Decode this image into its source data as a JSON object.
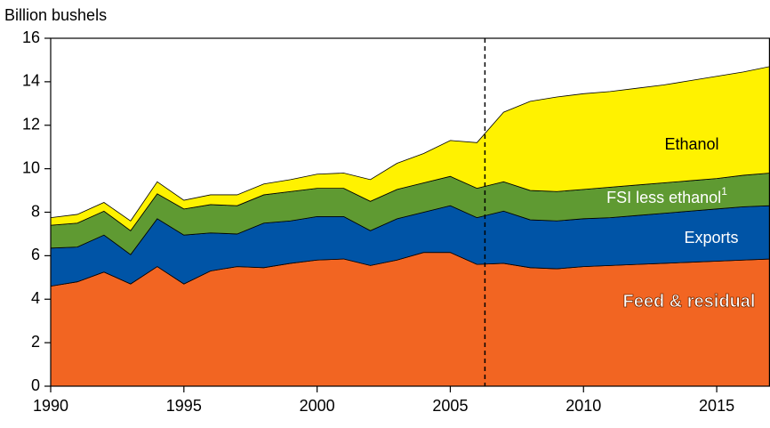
{
  "chart_data": {
    "type": "stacked-area",
    "y_label": "Billion bushels",
    "x": [
      1990,
      1991,
      1992,
      1993,
      1994,
      1995,
      1996,
      1997,
      1998,
      1999,
      2000,
      2001,
      2002,
      2003,
      2004,
      2005,
      2006,
      2007,
      2008,
      2009,
      2010,
      2011,
      2012,
      2013,
      2014,
      2015,
      2016,
      2017
    ],
    "series": [
      {
        "name": "Feed & residual",
        "color": "#f26522",
        "label_color": "#ffffff",
        "values": [
          4.6,
          4.8,
          5.25,
          4.7,
          5.5,
          4.7,
          5.3,
          5.5,
          5.45,
          5.65,
          5.8,
          5.85,
          5.55,
          5.8,
          6.15,
          6.15,
          5.6,
          5.65,
          5.45,
          5.4,
          5.5,
          5.55,
          5.6,
          5.65,
          5.7,
          5.75,
          5.8,
          5.85
        ]
      },
      {
        "name": "Exports",
        "color": "#0054a6",
        "label_color": "#ffffff",
        "values": [
          1.75,
          1.6,
          1.7,
          1.35,
          2.2,
          2.25,
          1.75,
          1.5,
          2.05,
          1.95,
          2.0,
          1.95,
          1.6,
          1.9,
          1.85,
          2.15,
          2.15,
          2.4,
          2.2,
          2.2,
          2.2,
          2.2,
          2.25,
          2.3,
          2.35,
          2.4,
          2.45,
          2.45
        ]
      },
      {
        "name": "FSI less ethanol",
        "name_sup": "1",
        "color": "#5f9a32",
        "label_color": "#ffffff",
        "values": [
          1.05,
          1.1,
          1.1,
          1.1,
          1.15,
          1.2,
          1.3,
          1.3,
          1.3,
          1.35,
          1.3,
          1.3,
          1.35,
          1.35,
          1.35,
          1.35,
          1.35,
          1.35,
          1.35,
          1.35,
          1.35,
          1.4,
          1.4,
          1.4,
          1.4,
          1.4,
          1.45,
          1.5
        ]
      },
      {
        "name": "Ethanol",
        "color": "#fff200",
        "label_color": "#000000",
        "values": [
          0.35,
          0.4,
          0.4,
          0.45,
          0.55,
          0.4,
          0.45,
          0.5,
          0.5,
          0.55,
          0.65,
          0.7,
          1.0,
          1.2,
          1.35,
          1.65,
          2.1,
          3.2,
          4.1,
          4.35,
          4.4,
          4.4,
          4.45,
          4.5,
          4.6,
          4.7,
          4.75,
          4.9
        ]
      }
    ],
    "vline": 2006.3,
    "xlim": [
      1990,
      2017
    ],
    "xticks": [
      1990,
      1995,
      2000,
      2005,
      2010,
      2015
    ],
    "ylim": [
      0,
      16
    ],
    "yticks": [
      0,
      2,
      4,
      6,
      8,
      10,
      12,
      14,
      16
    ]
  }
}
